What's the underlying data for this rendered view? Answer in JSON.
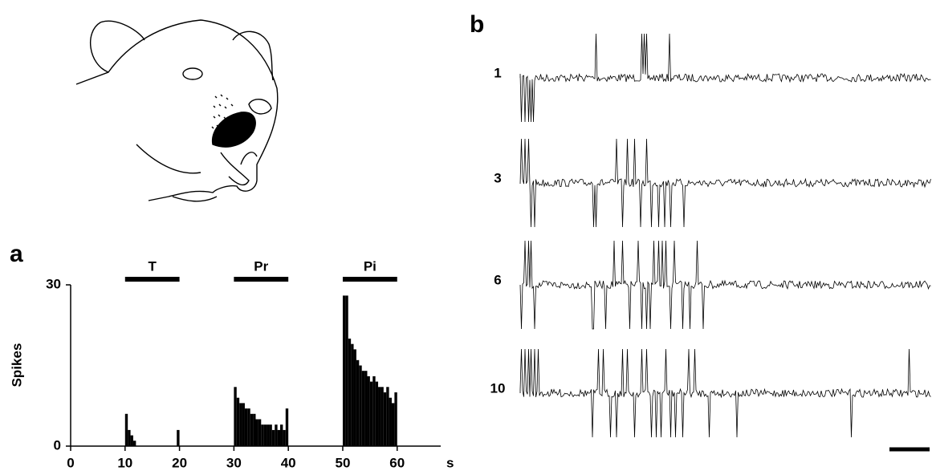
{
  "panel_labels": [
    "a",
    "b"
  ],
  "chart_data": {
    "type": "histogram",
    "y_label": "Spikes",
    "x_label": "s",
    "bins": [
      0,
      0.5,
      1,
      1.5,
      2,
      2.5,
      3,
      3.5,
      4,
      4.5,
      5,
      5.5,
      6,
      6.5,
      7,
      7.5,
      8,
      8.5,
      9,
      9.5,
      10,
      10.5,
      11,
      11.5,
      12,
      12.5,
      13,
      13.5,
      14,
      14.5,
      15,
      15.5,
      16,
      16.5,
      17,
      17.5,
      18,
      18.5,
      19,
      19.5,
      20,
      20.5,
      21,
      21.5,
      22,
      22.5,
      23,
      23.5,
      24,
      24.5,
      25,
      25.5,
      26,
      26.5,
      27,
      27.5,
      28,
      28.5,
      29,
      29.5,
      30,
      30.5,
      31,
      31.5,
      32,
      32.5,
      33,
      33.5,
      34,
      34.5,
      35,
      35.5,
      36,
      36.5,
      37,
      37.5,
      38,
      38.5,
      39,
      39.5,
      40,
      40.5,
      41,
      41.5,
      42,
      42.5,
      43,
      43.5,
      44,
      44.5,
      45,
      45.5,
      46,
      46.5,
      47,
      47.5,
      48,
      48.5,
      49,
      49.5,
      50,
      50.5,
      51,
      51.5,
      52,
      52.5,
      53,
      53.5,
      54,
      54.5,
      55,
      55.5,
      56,
      56.5,
      57,
      57.5,
      58,
      58.5,
      59,
      59.5,
      60
    ],
    "counts": [
      0,
      0,
      0,
      0,
      0,
      0,
      0,
      0,
      0,
      0,
      0,
      0,
      0,
      0,
      0,
      0,
      0,
      0,
      0,
      0,
      6,
      3,
      2,
      1,
      0,
      0,
      0,
      0,
      0,
      0,
      0,
      0,
      0,
      0,
      0,
      0,
      0,
      0,
      0,
      3,
      0,
      0,
      0,
      0,
      0,
      0,
      0,
      0,
      0,
      0,
      0,
      0,
      0,
      0,
      0,
      0,
      0,
      0,
      0,
      0,
      11,
      9,
      8,
      8,
      7,
      7,
      6,
      6,
      5,
      5,
      4,
      4,
      4,
      4,
      3,
      4,
      3,
      4,
      3,
      7,
      0,
      0,
      0,
      0,
      0,
      0,
      0,
      0,
      0,
      0,
      0,
      0,
      0,
      0,
      0,
      0,
      0,
      0,
      0,
      0,
      28,
      28,
      20,
      19,
      18,
      16,
      15,
      14,
      14,
      13,
      12,
      13,
      12,
      11,
      11,
      10,
      11,
      9,
      8,
      10
    ],
    "color": "#000000",
    "xlim": [
      0,
      68
    ],
    "xticks": [
      0,
      10,
      20,
      30,
      40,
      50,
      60
    ],
    "ylim": [
      0,
      30
    ],
    "yticks": [
      0,
      30
    ],
    "annotations": [
      {
        "text": "T",
        "x": [
          10,
          20
        ]
      },
      {
        "text": "Pr",
        "x": [
          30,
          40
        ]
      },
      {
        "text": "Pi",
        "x": [
          50,
          60
        ]
      }
    ]
  },
  "traces": {
    "labels": [
      "1",
      "3",
      "6",
      "10"
    ]
  }
}
